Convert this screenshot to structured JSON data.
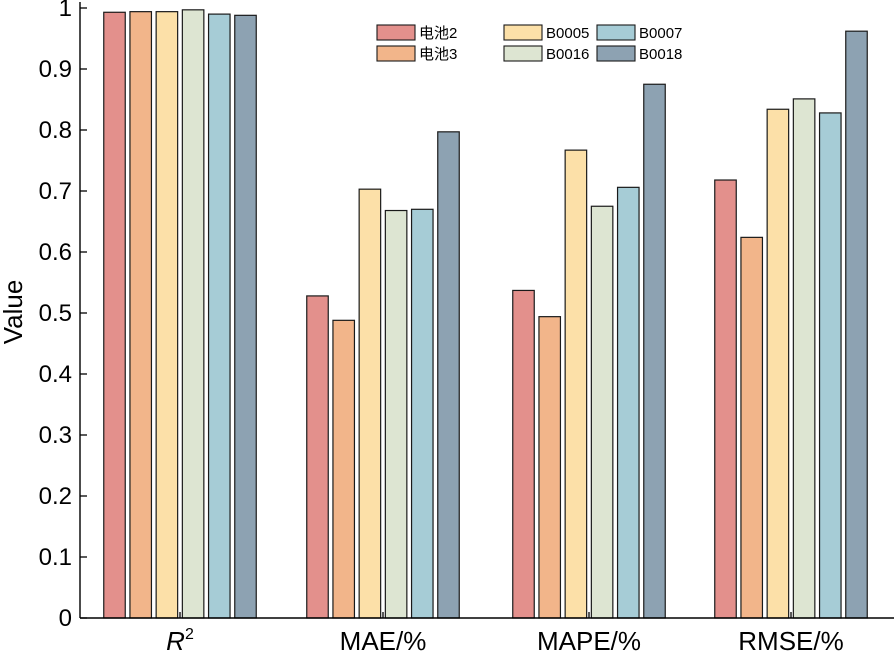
{
  "chart_data": {
    "type": "bar",
    "title": "",
    "xlabel": "",
    "ylabel": "Value",
    "ylim": [
      0,
      1
    ],
    "yticks": [
      "0",
      "0.1",
      "0.2",
      "0.3",
      "0.4",
      "0.5",
      "0.6",
      "0.7",
      "0.8",
      "0.9",
      "1"
    ],
    "categories": [
      "R",
      "MAE/%",
      "MAPE/%",
      "RMSE/%"
    ],
    "category_superscripts": [
      "2",
      "",
      "",
      ""
    ],
    "series": [
      {
        "name": "电池2",
        "color": "#e3908c",
        "values": [
          0.993,
          0.528,
          0.537,
          0.718
        ]
      },
      {
        "name": "电池3",
        "color": "#f2b58a",
        "values": [
          0.994,
          0.488,
          0.494,
          0.624
        ]
      },
      {
        "name": "B0005",
        "color": "#fce0a8",
        "values": [
          0.994,
          0.703,
          0.767,
          0.834
        ]
      },
      {
        "name": "B0016",
        "color": "#dde5d2",
        "values": [
          0.997,
          0.668,
          0.675,
          0.851
        ]
      },
      {
        "name": "B0007",
        "color": "#a6ccd6",
        "values": [
          0.99,
          0.67,
          0.706,
          0.828
        ]
      },
      {
        "name": "B0018",
        "color": "#8da2b2",
        "values": [
          0.988,
          0.797,
          0.875,
          0.962
        ]
      }
    ],
    "legend_position": "top-right"
  }
}
